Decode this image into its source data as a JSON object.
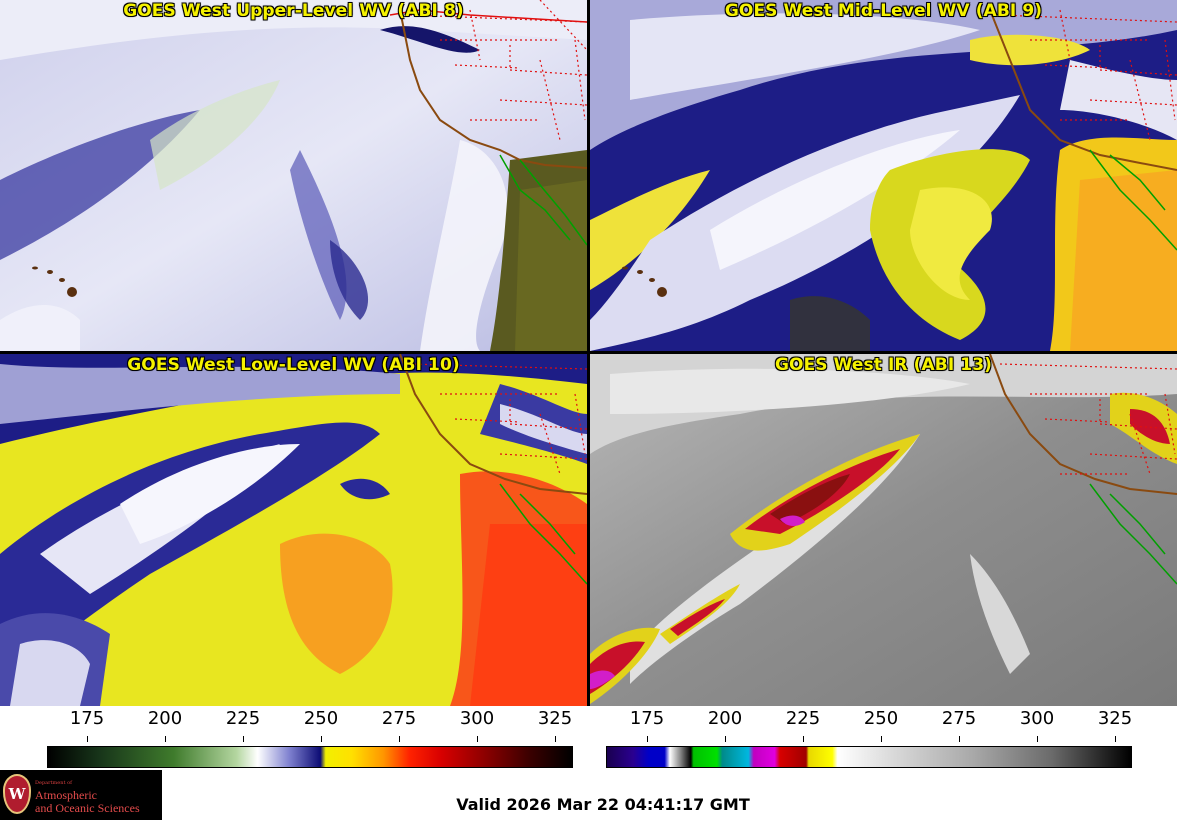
{
  "panels": [
    {
      "title": "GOES West Upper-Level WV (ABI 8)"
    },
    {
      "title": "GOES West Mid-Level WV (ABI 9)"
    },
    {
      "title": "GOES West Low-Level WV (ABI 10)"
    },
    {
      "title": "GOES West IR (ABI 13)"
    }
  ],
  "wv_colorbar": {
    "ticks": [
      "175",
      "200",
      "225",
      "250",
      "275",
      "300",
      "325"
    ],
    "colors": [
      "#000000",
      "#1a3a12",
      "#3d7a2a",
      "#a8d090",
      "#ffffff",
      "#6a6ac8",
      "#0a0a70",
      "#f5f500",
      "#ff9a00",
      "#ff1a00",
      "#b00000",
      "#3a0000",
      "#000000"
    ]
  },
  "ir_colorbar": {
    "ticks": [
      "175",
      "200",
      "225",
      "250",
      "275",
      "300",
      "325"
    ]
  },
  "logo": {
    "seal_letter": "W",
    "department": "Department of",
    "line1": "Atmospheric",
    "line2": "and Oceanic Sciences"
  },
  "valid_text": "Valid 2026 Mar 22 04:41:17 GMT",
  "colors": {
    "title_yellow": "#f5f200",
    "map_state_lines": "#e01010",
    "coast_brown": "#8a4a10",
    "coast_green": "#00a000"
  }
}
